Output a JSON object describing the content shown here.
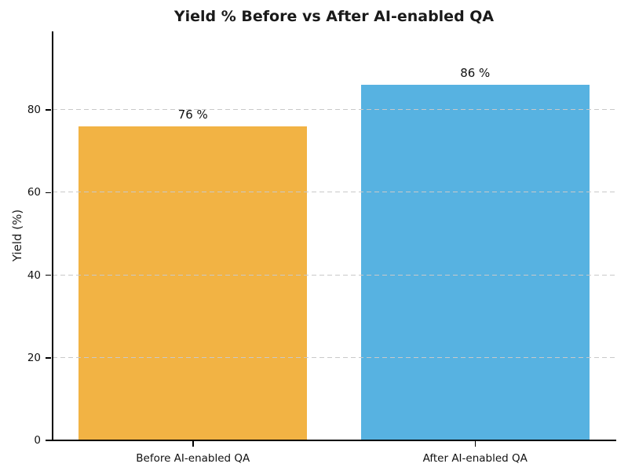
{
  "figure": {
    "background": "#ffffff",
    "text_color": "#1a1a1a",
    "spine_color": "#000000",
    "grid_color": "#c9c9c9"
  },
  "chart_data": {
    "type": "bar",
    "title": "Yield % Before vs After AI-enabled QA",
    "xlabel": "",
    "ylabel": "Yield (%)",
    "categories": [
      "Before AI-enabled QA",
      "After AI-enabled QA"
    ],
    "values": [
      76,
      86
    ],
    "value_labels": [
      "76 %",
      "86 %"
    ],
    "bar_colors": [
      "#F2B344",
      "#57B2E1"
    ],
    "yticks": [
      0,
      20,
      40,
      60,
      80
    ],
    "ylim": [
      0,
      99
    ],
    "grid": "horizontal dashed gridlines at y ticks",
    "legend_position": "none"
  }
}
